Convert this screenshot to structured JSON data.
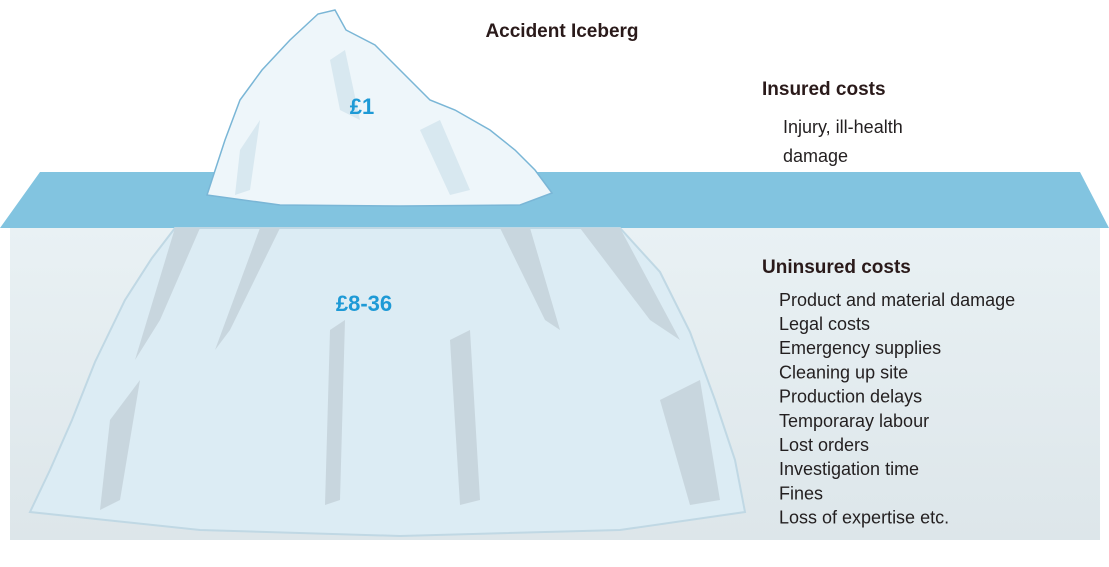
{
  "title": "Accident Iceberg",
  "above_water": {
    "cost": "£1",
    "heading": "Insured costs",
    "items": [
      "Injury, ill-health",
      "damage"
    ]
  },
  "below_water": {
    "cost": "£8-36",
    "heading": "Uninsured costs",
    "items": [
      "Product and material damage",
      "Legal costs",
      "Emergency supplies",
      "Cleaning up site",
      "Production delays",
      "Temporaray labour",
      "Lost orders",
      "Investigation time",
      "Fines",
      "Loss of expertise etc."
    ]
  }
}
